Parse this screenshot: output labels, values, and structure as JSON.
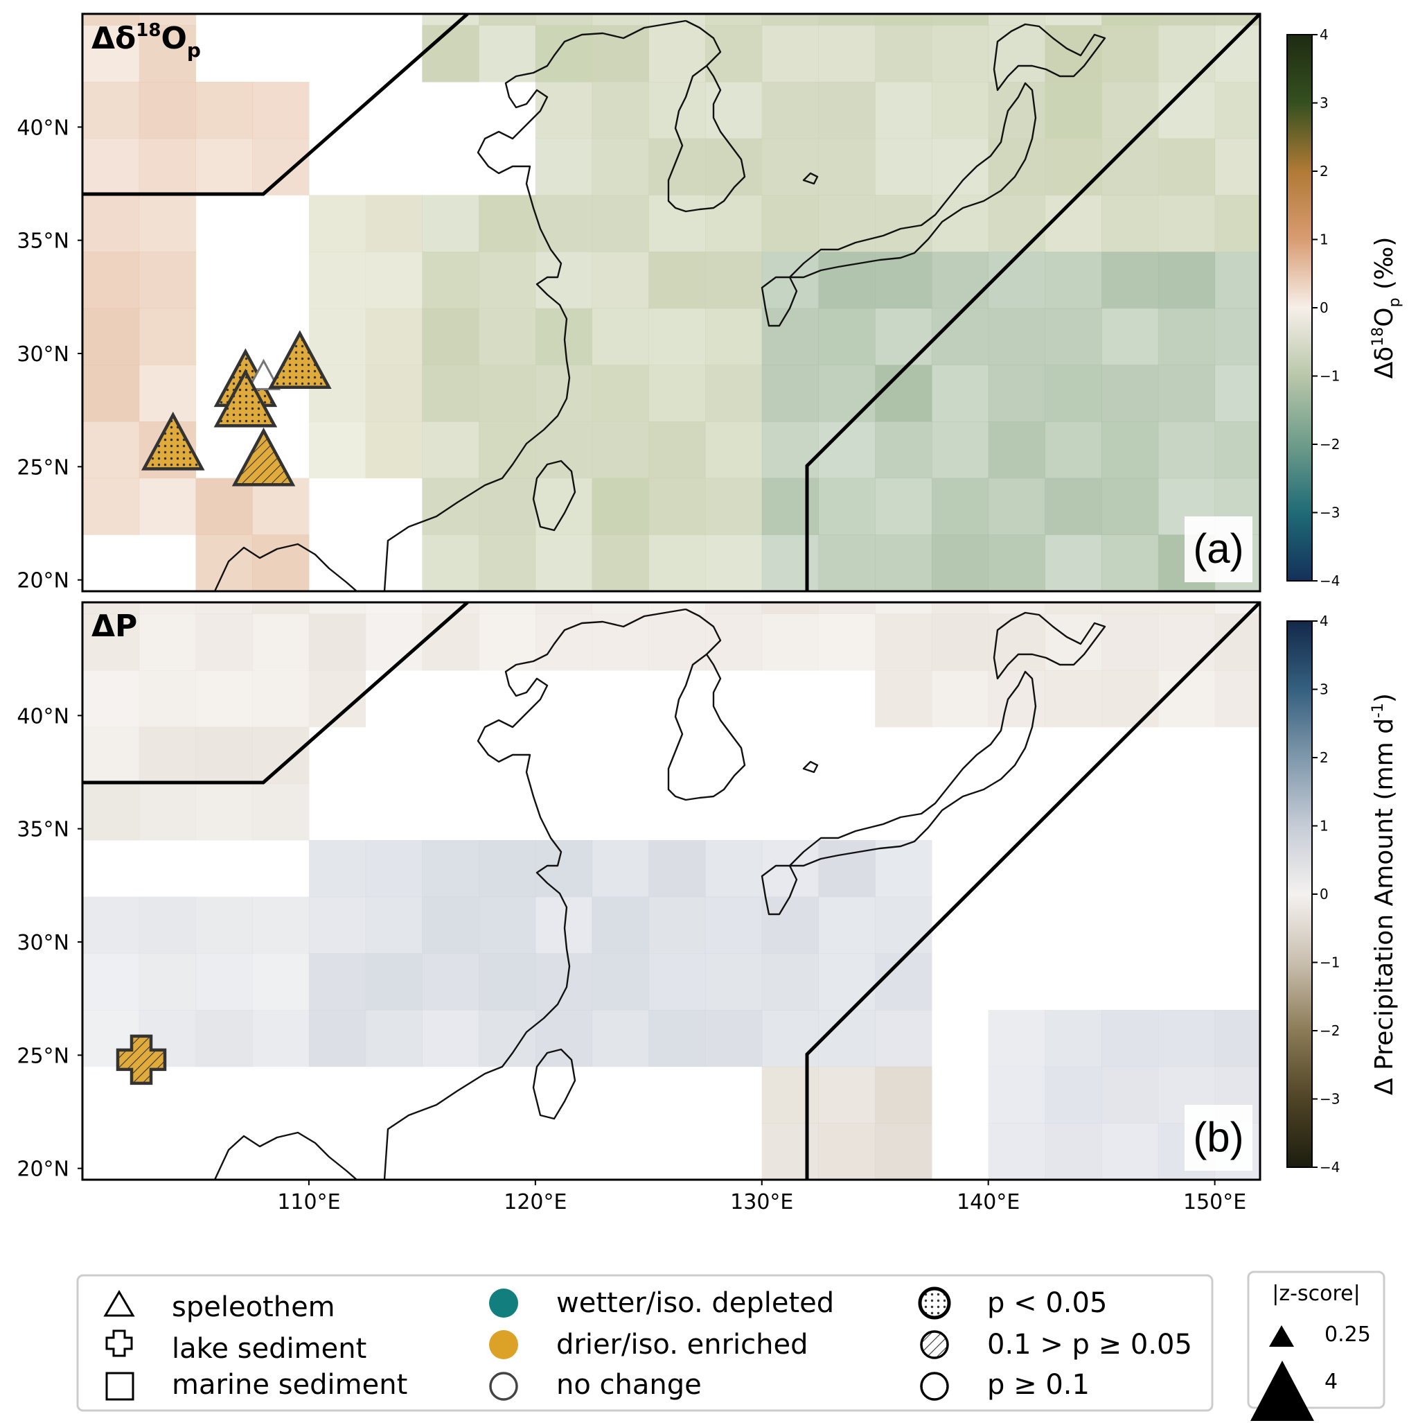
{
  "panels": [
    {
      "id": "a",
      "title_main": "Δδ",
      "title_sup": "18",
      "title_o": "O",
      "title_sub": "p",
      "letter": "(a)",
      "colorbar": {
        "label_prefix": "Δδ",
        "label_sup": "18",
        "label_o": "O",
        "label_sub": "p",
        "label_suffix": " (‰)",
        "ticks": [
          "4",
          "3",
          "2",
          "1",
          "0",
          "−1",
          "−2",
          "−3",
          "−4"
        ],
        "colors_top_to_bottom": [
          "#1e2b12",
          "#35501f",
          "#b07a36",
          "#d99c72",
          "#f6efe9",
          "#b9c7a9",
          "#6e9c8a",
          "#1f6b76",
          "#14305a"
        ]
      },
      "map_tint": "#c9d1b1",
      "west_tint": "#e6c2a8"
    },
    {
      "id": "b",
      "title_main": "ΔP",
      "letter": "(b)",
      "colorbar": {
        "label": "Δ Precipitation Amount (mm d",
        "label_sup": "-1",
        "label_end": ")",
        "ticks": [
          "4",
          "3",
          "2",
          "1",
          "0",
          "−1",
          "−2",
          "−3",
          "−4"
        ],
        "colors_top_to_bottom": [
          "#13294a",
          "#35607f",
          "#7f98ab",
          "#c6ccd6",
          "#f4f1ef",
          "#c9bfaf",
          "#8b7b56",
          "#4f4426",
          "#1c1d0e"
        ]
      }
    }
  ],
  "axes": {
    "y_ticks": [
      "40°N",
      "35°N",
      "30°N",
      "25°N",
      "20°N"
    ],
    "x_ticks": [
      "110°E",
      "120°E",
      "130°E",
      "140°E",
      "150°E"
    ],
    "lon_range": [
      100,
      152
    ],
    "lat_range": [
      19.5,
      45
    ]
  },
  "markers": [
    {
      "panel": "a",
      "type": "speleothem",
      "lon": 107.2,
      "lat": 28.8,
      "signif": "dots",
      "color": "#e0ab3a"
    },
    {
      "panel": "a",
      "type": "speleothem",
      "lon": 108.0,
      "lat": 29.0,
      "signif": "none",
      "color": "#ffffff"
    },
    {
      "panel": "a",
      "type": "speleothem",
      "lon": 107.2,
      "lat": 27.9,
      "signif": "dots",
      "color": "#e0ab3a"
    },
    {
      "panel": "a",
      "type": "speleothem",
      "lon": 109.6,
      "lat": 29.6,
      "signif": "dots",
      "color": "#e0ab3a"
    },
    {
      "panel": "a",
      "type": "speleothem",
      "lon": 104.0,
      "lat": 26.0,
      "signif": "dots",
      "color": "#e0ab3a"
    },
    {
      "panel": "a",
      "type": "speleothem",
      "lon": 108.0,
      "lat": 25.3,
      "signif": "hatch",
      "color": "#e0ab3a"
    },
    {
      "panel": "b",
      "type": "lake sediment",
      "lon": 102.6,
      "lat": 24.8,
      "signif": "hatch",
      "color": "#e0ab3a"
    }
  ],
  "legend": {
    "col1": [
      "speleothem",
      "lake sediment",
      "marine sediment"
    ],
    "col2": [
      "wetter/iso. depleted",
      "drier/iso. enriched",
      "no change"
    ],
    "col2_colors": [
      "#127e7e",
      "#dba227",
      "#ffffff"
    ],
    "col3": [
      "p < 0.05",
      "0.1 > p ≥ 0.05",
      "p ≥ 0.1"
    ],
    "size_title": "|z-score|",
    "size_values": [
      "0.25",
      "4"
    ]
  }
}
